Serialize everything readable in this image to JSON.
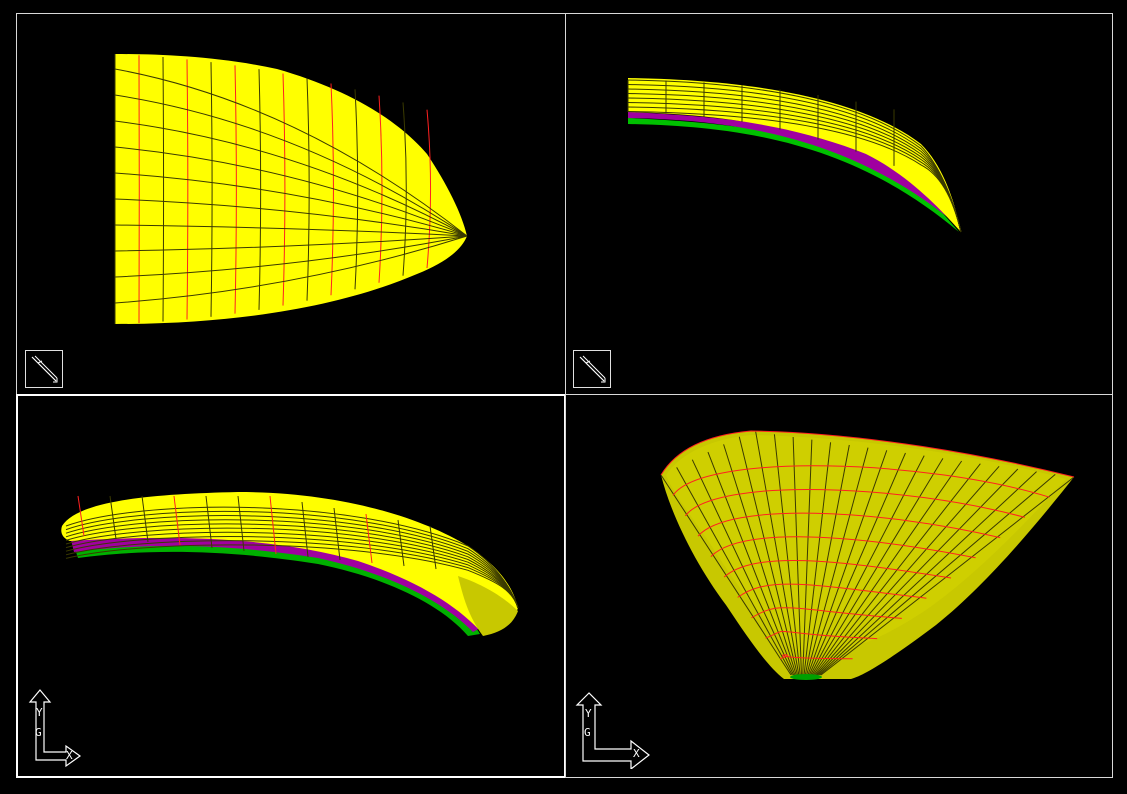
{
  "app": {
    "title": ""
  },
  "colors": {
    "background": "#000000",
    "surface": "#ffff00",
    "surface_shadow": "#b8b800",
    "isoline": "#ff2020",
    "meridian": "#3a3a00",
    "edge_band": "#a000a0",
    "edge_band_2": "#00c000",
    "frame": "#d8d8d8"
  },
  "viewports": [
    {
      "id": "top-left",
      "active": false,
      "icon": "broken-pencil-ucs-icon"
    },
    {
      "id": "top-right",
      "active": false,
      "icon": "broken-pencil-ucs-icon"
    },
    {
      "id": "bottom-left",
      "active": true,
      "icon": "ucs-axis-icon",
      "axis_labels": {
        "y": "Y",
        "x": "X",
        "origin": "G"
      }
    },
    {
      "id": "bottom-right",
      "active": false,
      "icon": "ucs-axis-icon",
      "axis_labels": {
        "y": "Y",
        "x": "X",
        "origin": "G"
      }
    }
  ]
}
